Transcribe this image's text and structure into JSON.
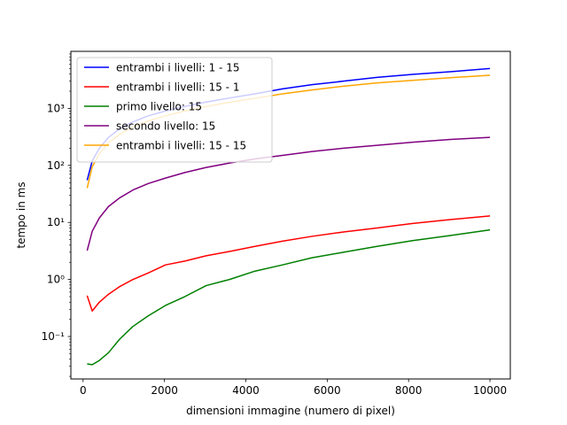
{
  "chart_data": {
    "type": "line",
    "xlabel": "dimensioni immagine (numero di pixel)",
    "ylabel": "tempo in ms",
    "xlim": [
      -300,
      10500
    ],
    "ylim": [
      0.018,
      10000
    ],
    "yscale": "log",
    "grid": false,
    "legend_position": "top-left",
    "x_ticks": [
      0,
      2000,
      4000,
      6000,
      8000,
      10000
    ],
    "x_tick_labels": [
      "0",
      "2000",
      "4000",
      "6000",
      "8000",
      "10000"
    ],
    "y_ticks": [
      0.1,
      1,
      10,
      100,
      1000
    ],
    "y_tick_labels": [
      "10⁻¹",
      "10⁰",
      "10¹",
      "10²",
      "10³"
    ],
    "series": [
      {
        "name": "entrambi i livelli: 1 - 15",
        "color": "#0000ff",
        "x": [
          100,
          225,
          400,
          625,
          900,
          1225,
          1600,
          2025,
          2500,
          3025,
          3600,
          4225,
          4900,
          5625,
          6400,
          7225,
          8100,
          9025,
          10000
        ],
        "y": [
          55,
          120,
          200,
          310,
          440,
          580,
          740,
          900,
          1080,
          1290,
          1520,
          1800,
          2200,
          2600,
          3000,
          3500,
          3950,
          4400,
          5000
        ]
      },
      {
        "name": "entrambi i livelli: 15 - 1",
        "color": "#ff0000",
        "x": [
          100,
          225,
          400,
          625,
          900,
          1225,
          1600,
          2025,
          2500,
          3025,
          3600,
          4225,
          4900,
          5625,
          6400,
          7225,
          8100,
          9025,
          10000
        ],
        "y": [
          0.52,
          0.28,
          0.4,
          0.55,
          0.75,
          1.0,
          1.3,
          1.8,
          2.1,
          2.6,
          3.1,
          3.8,
          4.7,
          5.7,
          6.8,
          8.0,
          9.6,
          11.2,
          13.0
        ]
      },
      {
        "name": "primo livello: 15",
        "color": "#008000",
        "x": [
          100,
          225,
          400,
          625,
          900,
          1225,
          1600,
          2025,
          2500,
          3025,
          3600,
          4225,
          4900,
          5625,
          6400,
          7225,
          8100,
          9025,
          10000
        ],
        "y": [
          0.033,
          0.032,
          0.038,
          0.052,
          0.09,
          0.15,
          0.23,
          0.35,
          0.5,
          0.78,
          1.0,
          1.4,
          1.8,
          2.4,
          3.0,
          3.8,
          4.8,
          5.9,
          7.4
        ]
      },
      {
        "name": "secondo livello: 15",
        "color": "#800080",
        "x": [
          100,
          225,
          400,
          625,
          900,
          1225,
          1600,
          2025,
          2500,
          3025,
          3600,
          4225,
          4900,
          5625,
          6400,
          7225,
          8100,
          9025,
          10000
        ],
        "y": [
          3.2,
          7.0,
          12.0,
          19.0,
          27.0,
          37.0,
          48.0,
          60.0,
          75.0,
          92.0,
          110.0,
          130.0,
          150.0,
          175.0,
          200.0,
          225.0,
          255.0,
          285.0,
          310.0
        ]
      },
      {
        "name": "entrambi i livelli: 15 - 15",
        "color": "#ffa500",
        "x": [
          100,
          225,
          400,
          625,
          900,
          1225,
          1600,
          2025,
          2500,
          3025,
          3600,
          4225,
          4900,
          5625,
          6400,
          7225,
          8100,
          9025,
          10000
        ],
        "y": [
          40,
          95,
          160,
          250,
          350,
          470,
          600,
          740,
          900,
          1080,
          1280,
          1500,
          1800,
          2100,
          2450,
          2800,
          3100,
          3450,
          3800
        ]
      }
    ]
  }
}
